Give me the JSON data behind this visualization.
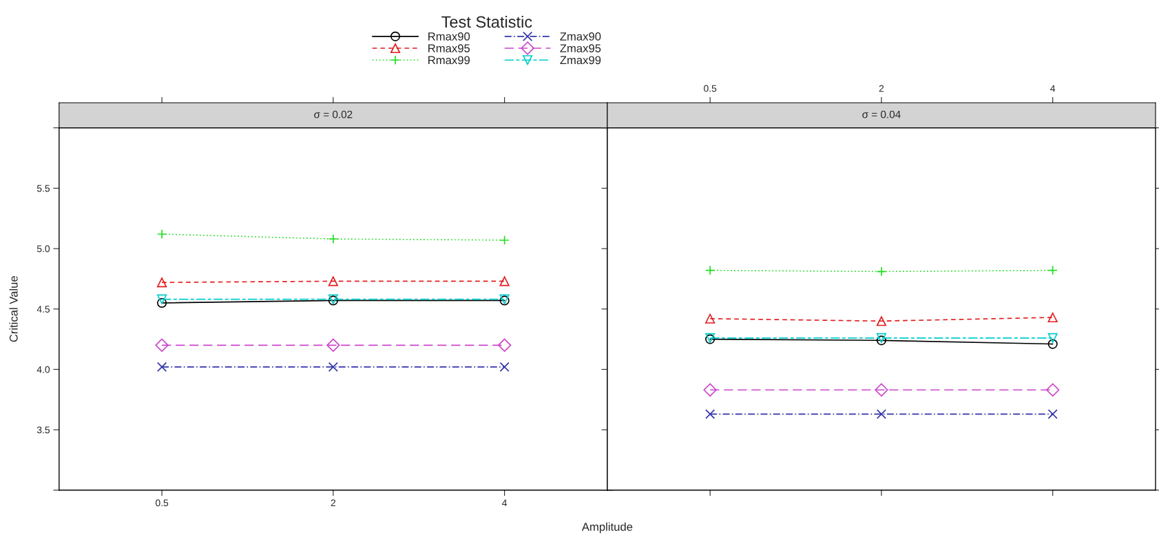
{
  "chart_data": [
    {
      "type": "line",
      "title": "σ = 0.02",
      "legend_title": "Test Statistic",
      "legend": "top",
      "xlabel": "Amplitude",
      "ylabel": "Critical Value",
      "categories": [
        "0.5",
        "2",
        "4"
      ],
      "ylim": [
        3,
        6
      ],
      "yticks": [
        {
          "value": 3,
          "label": null
        },
        3.5,
        {
          "value": 4,
          "label": "4.0"
        },
        4.5,
        {
          "value": 5,
          "label": "5.0"
        },
        5.5,
        {
          "value": 6,
          "label": null
        }
      ],
      "grid": false,
      "series": [
        {
          "name": "Rmax90",
          "color": "#000000",
          "marker": "circle",
          "line_style": "solid",
          "values": [
            4.55,
            4.57,
            4.57
          ]
        },
        {
          "name": "Rmax95",
          "color": "#e31a1c",
          "marker": "triangle",
          "line_style": "dashed",
          "values": [
            4.72,
            4.73,
            4.73
          ]
        },
        {
          "name": "Rmax99",
          "color": "#22dd22",
          "marker": "plus",
          "line_style": "dotted",
          "values": [
            5.12,
            5.08,
            5.07
          ]
        },
        {
          "name": "Zmax90",
          "color": "#3333aa",
          "marker": "cross",
          "line_style": "dashdot",
          "values": [
            4.02,
            4.02,
            4.02
          ]
        },
        {
          "name": "Zmax95",
          "color": "#cc44cc",
          "marker": "diamond",
          "line_style": "longdash",
          "values": [
            4.2,
            4.2,
            4.2
          ]
        },
        {
          "name": "Zmax99",
          "color": "#00cccc",
          "marker": "triangle_down",
          "line_style": "longdashdot",
          "values": [
            4.58,
            4.58,
            4.58
          ]
        }
      ]
    },
    {
      "type": "line",
      "title": "σ = 0.04",
      "tick_labels": "x",
      "categories": [
        "0.5",
        "2",
        "4"
      ],
      "ylim": [
        3,
        6
      ],
      "yticks": [
        {
          "value": 3,
          "label": null
        },
        3.5,
        4.0,
        4.5,
        5.0,
        5.5,
        {
          "value": 6,
          "label": null
        }
      ],
      "grid": false,
      "series": [
        {
          "color": "#000000",
          "marker": "circle",
          "line_style": "solid",
          "values": [
            4.25,
            4.24,
            4.21
          ]
        },
        {
          "color": "#e31a1c",
          "marker": "triangle",
          "line_style": "dashed",
          "values": [
            4.42,
            4.4,
            4.43
          ]
        },
        {
          "color": "#22dd22",
          "marker": "plus",
          "line_style": "dotted",
          "values": [
            4.82,
            4.81,
            4.82
          ]
        },
        {
          "color": "#3333aa",
          "marker": "cross",
          "line_style": "dashdot",
          "values": [
            3.63,
            3.63,
            3.63
          ]
        },
        {
          "color": "#cc44cc",
          "marker": "diamond",
          "line_style": "longdash",
          "values": [
            3.83,
            3.83,
            3.83
          ]
        },
        {
          "color": "#00cccc",
          "marker": "triangle_down",
          "line_style": "longdashdot",
          "values": [
            4.26,
            4.26,
            4.26
          ]
        }
      ]
    }
  ]
}
